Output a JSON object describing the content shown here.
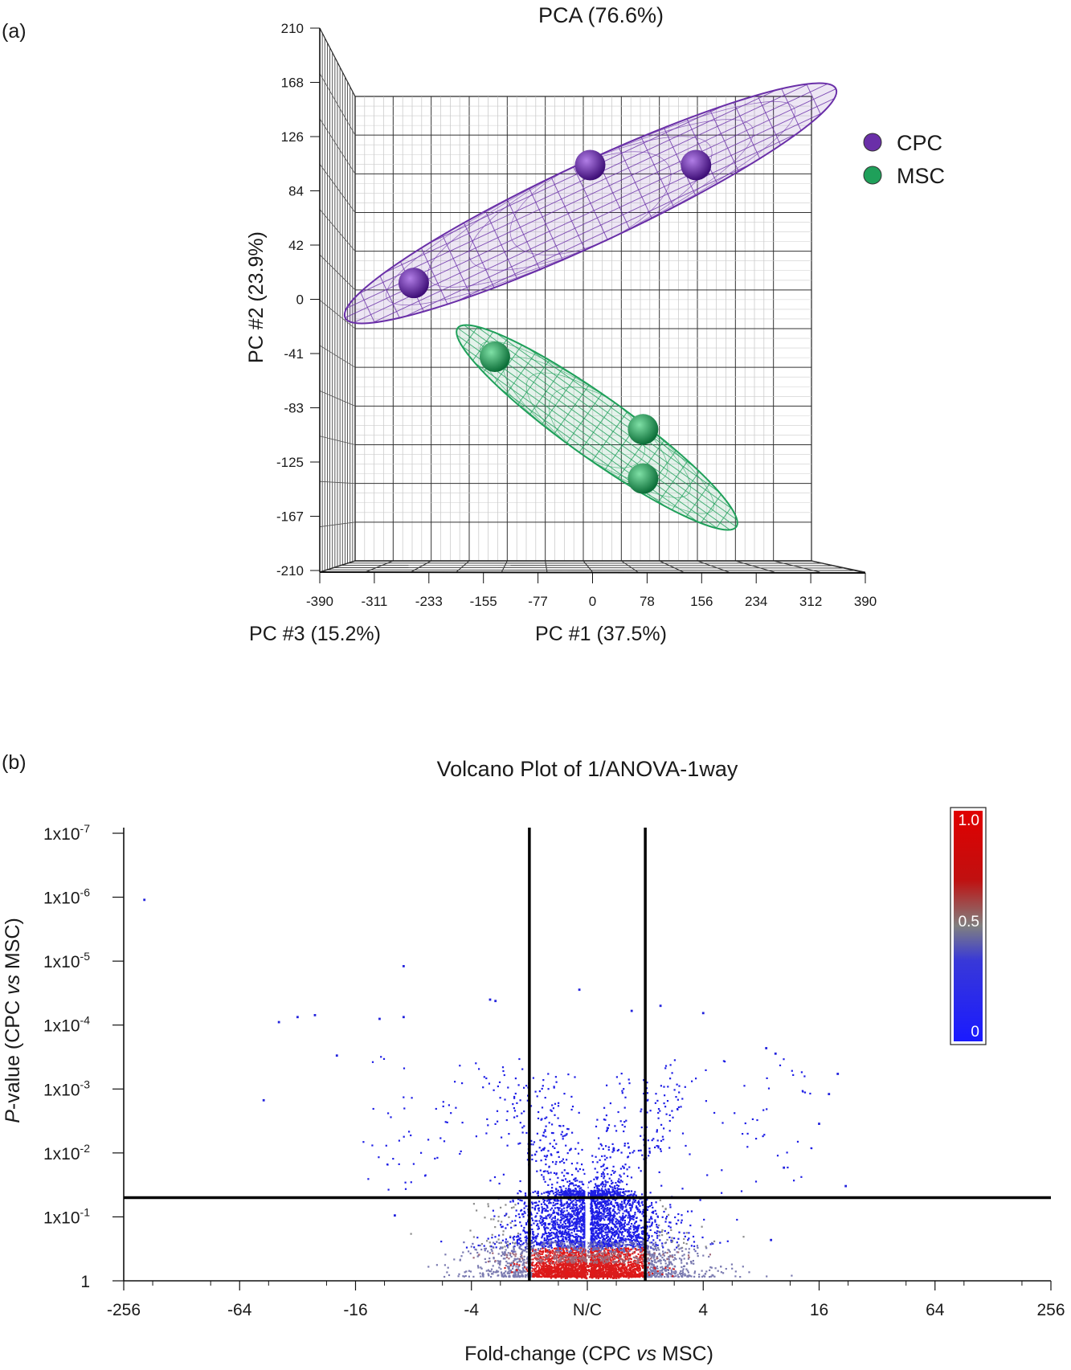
{
  "chart_data": [
    {
      "panel_label": "(a)",
      "type": "scatter",
      "subtype": "3d-pca",
      "title": "PCA (76.6%)",
      "xlabel": "PC #1 (37.5%)",
      "ylabel": "PC #2 (23.9%)",
      "zlabel": "PC #3 (15.2%)",
      "xticks": [
        "-390",
        "-311",
        "-233",
        "-155",
        "-77",
        "0",
        "78",
        "156",
        "234",
        "312",
        "390"
      ],
      "yticks": [
        "210",
        "168",
        "126",
        "84",
        "42",
        "0",
        "-41",
        "-83",
        "-125",
        "-167",
        "-210"
      ],
      "xlim": [
        -390,
        390
      ],
      "ylim": [
        -210,
        210
      ],
      "grid": true,
      "legend_position": "right",
      "series": [
        {
          "name": "CPC",
          "color": "#6a2fa8",
          "points": [
            {
              "x": -250,
              "y": 12
            },
            {
              "x": 0,
              "y": 103
            },
            {
              "x": 150,
              "y": 103
            }
          ]
        },
        {
          "name": "MSC",
          "color": "#1fa05a",
          "points": [
            {
              "x": -135,
              "y": -45
            },
            {
              "x": 75,
              "y": -101
            },
            {
              "x": 75,
              "y": -139
            }
          ]
        }
      ]
    },
    {
      "panel_label": "(b)",
      "type": "scatter",
      "subtype": "volcano",
      "title": "Volcano Plot of 1/ANOVA-1way",
      "xlabel_parts": [
        "Fold-change (CPC ",
        "vs",
        " MSC)"
      ],
      "ylabel_parts": [
        "P",
        "-value (CPC ",
        "vs",
        " MSC)"
      ],
      "xticks": [
        "-256",
        "-64",
        "-16",
        "-4",
        "N/C",
        "4",
        "16",
        "64",
        "256"
      ],
      "yticks": [
        "1x10-7",
        "1x10-6",
        "1x10-5",
        "1x10-4",
        "1x10-3",
        "1x10-2",
        "1x10-1",
        "1"
      ],
      "ytick_parts": [
        {
          "base": "1x10",
          "exp": "-7"
        },
        {
          "base": "1x10",
          "exp": "-6"
        },
        {
          "base": "1x10",
          "exp": "-5"
        },
        {
          "base": "1x10",
          "exp": "-4"
        },
        {
          "base": "1x10",
          "exp": "-3"
        },
        {
          "base": "1x10",
          "exp": "-2"
        },
        {
          "base": "1x10",
          "exp": "-1"
        },
        {
          "base": "1",
          "exp": ""
        }
      ],
      "x_scale": "log2 fold-change",
      "y_scale": "-log10 p-value",
      "thresholds": {
        "fold_change": 2,
        "p_value": 0.05
      },
      "colorbar": {
        "labels": [
          "1.0",
          "0.5",
          "0"
        ],
        "colors": [
          "#e00000",
          "#808080",
          "#1a1aff"
        ],
        "position": "top-right"
      },
      "highlighted_points": [
        {
          "fc": -200,
          "p": 1.1e-06
        },
        {
          "fc": -9,
          "p": 1.2e-05
        },
        {
          "fc": -3.2,
          "p": 4e-05
        },
        {
          "fc": -3.0,
          "p": 4.2e-05
        },
        {
          "fc": -1.1,
          "p": 2.8e-05
        },
        {
          "fc": 1.7,
          "p": 6e-05
        },
        {
          "fc": 2.4,
          "p": 5e-05
        },
        {
          "fc": 4,
          "p": 6.5e-05
        },
        {
          "fc": -40,
          "p": 9e-05
        },
        {
          "fc": -32,
          "p": 7.5e-05
        },
        {
          "fc": -26,
          "p": 7e-05
        },
        {
          "fc": -12,
          "p": 8e-05
        },
        {
          "fc": -9,
          "p": 7.5e-05
        },
        {
          "fc": -20,
          "p": 0.0003
        },
        {
          "fc": 8.5,
          "p": 0.00023
        },
        {
          "fc": 9.5,
          "p": 0.00028
        },
        {
          "fc": 20,
          "p": 0.00058
        },
        {
          "fc": 18,
          "p": 0.0012
        },
        {
          "fc": 16,
          "p": 0.0035
        },
        {
          "fc": 10.5,
          "p": 0.017
        },
        {
          "fc": 22,
          "p": 0.033
        },
        {
          "fc": -48,
          "p": 0.0015
        },
        {
          "fc": -10,
          "p": 0.095
        },
        {
          "fc": 9,
          "p": 0.23
        }
      ],
      "significant_points": 620,
      "nonsignificant_points": 4800
    }
  ]
}
